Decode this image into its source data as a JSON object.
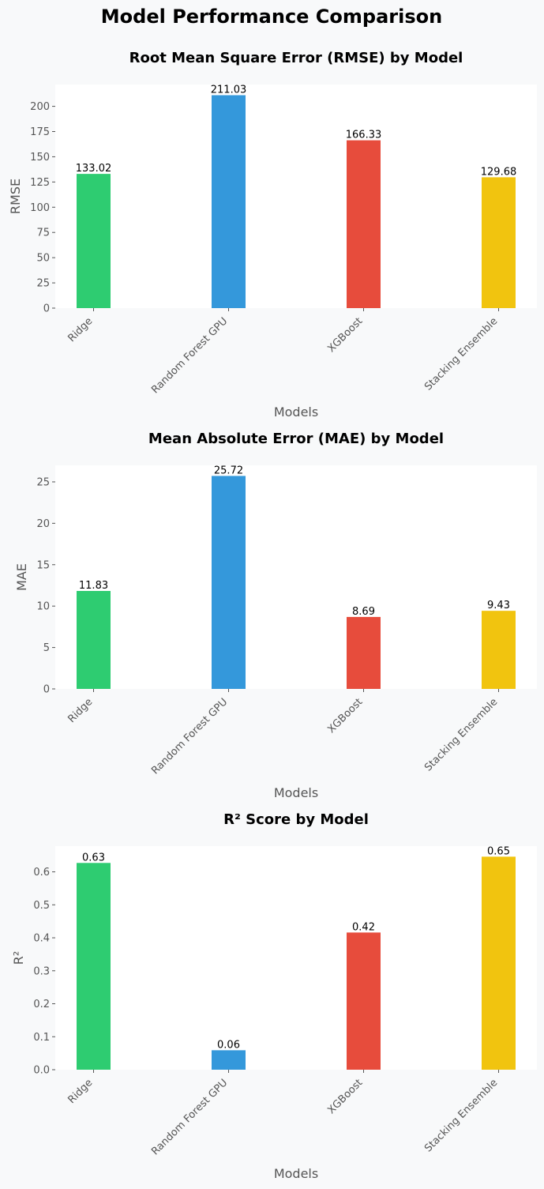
{
  "title": "Model Performance Comparison",
  "chart_data": [
    {
      "type": "bar",
      "title": "Root Mean Square Error (RMSE) by Model",
      "categories": [
        "Ridge",
        "Random Forest GPU",
        "XGBoost",
        "Stacking Ensemble"
      ],
      "values": [
        133.02,
        211.03,
        166.33,
        129.68
      ],
      "value_labels": [
        "133.02",
        "211.03",
        "166.33",
        "129.68"
      ],
      "colors": [
        "#2ecc71",
        "#3498db",
        "#e74c3c",
        "#f1c40f"
      ],
      "xlabel": "Models",
      "ylabel": "RMSE",
      "ylim": [
        0,
        221.6
      ],
      "yticks": [
        0,
        25,
        50,
        75,
        100,
        125,
        150,
        175,
        200
      ],
      "ytick_labels": [
        "0",
        "25",
        "50",
        "75",
        "100",
        "125",
        "150",
        "175",
        "200"
      ],
      "grid": false
    },
    {
      "type": "bar",
      "title": "Mean Absolute Error (MAE) by Model",
      "categories": [
        "Ridge",
        "Random Forest GPU",
        "XGBoost",
        "Stacking Ensemble"
      ],
      "values": [
        11.83,
        25.72,
        8.69,
        9.43
      ],
      "value_labels": [
        "11.83",
        "25.72",
        "8.69",
        "9.43"
      ],
      "colors": [
        "#2ecc71",
        "#3498db",
        "#e74c3c",
        "#f1c40f"
      ],
      "xlabel": "Models",
      "ylabel": "MAE",
      "ylim": [
        0,
        27.0
      ],
      "yticks": [
        0,
        5,
        10,
        15,
        20,
        25
      ],
      "ytick_labels": [
        "0",
        "5",
        "10",
        "15",
        "20",
        "25"
      ],
      "grid": false
    },
    {
      "type": "bar",
      "title": "R² Score by Model",
      "categories": [
        "Ridge",
        "Random Forest GPU",
        "XGBoost",
        "Stacking Ensemble"
      ],
      "values": [
        0.627,
        0.059,
        0.416,
        0.646
      ],
      "value_labels": [
        "0.63",
        "0.06",
        "0.42",
        "0.65"
      ],
      "colors": [
        "#2ecc71",
        "#3498db",
        "#e74c3c",
        "#f1c40f"
      ],
      "xlabel": "Models",
      "ylabel": "R²",
      "ylim": [
        0,
        0.678
      ],
      "yticks": [
        0.0,
        0.1,
        0.2,
        0.3,
        0.4,
        0.5,
        0.6
      ],
      "ytick_labels": [
        "0.0",
        "0.1",
        "0.2",
        "0.3",
        "0.4",
        "0.5",
        "0.6"
      ],
      "grid": false
    }
  ]
}
